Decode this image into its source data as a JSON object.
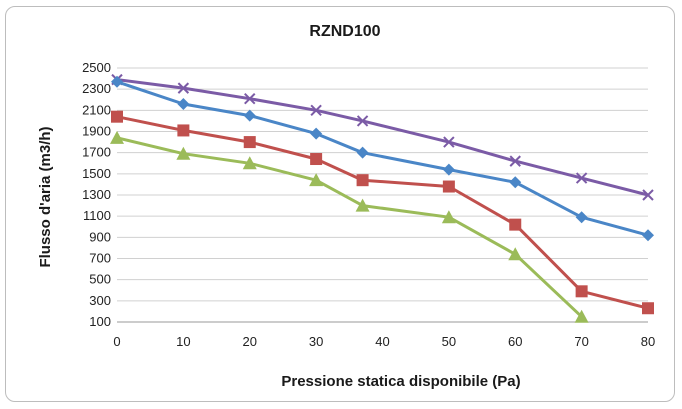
{
  "chart_data": {
    "type": "line",
    "title": "RZND100",
    "xlabel": "Pressione statica disponibile (Pa)",
    "ylabel": "Flusso d'aria (m3/h)",
    "xlim": [
      0,
      80
    ],
    "ylim": [
      100,
      2500
    ],
    "x_ticks": [
      "0",
      "10",
      "20",
      "30",
      "40",
      "50",
      "60",
      "70",
      "80"
    ],
    "y_ticks": [
      "100",
      "300",
      "500",
      "700",
      "900",
      "1100",
      "1300",
      "1500",
      "1700",
      "1900",
      "2100",
      "2300",
      "2500"
    ],
    "grid": true,
    "legend": "none",
    "series": [
      {
        "color": "#7b5ba6",
        "marker": "x",
        "x": [
          0,
          10,
          20,
          30,
          37,
          50,
          60,
          70,
          80
        ],
        "values": [
          2390,
          2310,
          2210,
          2100,
          2000,
          1800,
          1620,
          1460,
          1300
        ]
      },
      {
        "color": "#4a86c7",
        "marker": "diamond",
        "x": [
          0,
          10,
          20,
          30,
          37,
          50,
          60,
          70,
          80
        ],
        "values": [
          2370,
          2160,
          2050,
          1880,
          1700,
          1540,
          1420,
          1090,
          920
        ]
      },
      {
        "color": "#c0504d",
        "marker": "square",
        "x": [
          0,
          10,
          20,
          30,
          37,
          50,
          60,
          70,
          80
        ],
        "values": [
          2040,
          1910,
          1800,
          1640,
          1440,
          1380,
          1020,
          390,
          230
        ]
      },
      {
        "color": "#9bbb59",
        "marker": "triangle",
        "x": [
          0,
          10,
          20,
          30,
          37,
          50,
          60,
          70
        ],
        "values": [
          1840,
          1690,
          1600,
          1440,
          1200,
          1090,
          740,
          150
        ]
      }
    ]
  }
}
